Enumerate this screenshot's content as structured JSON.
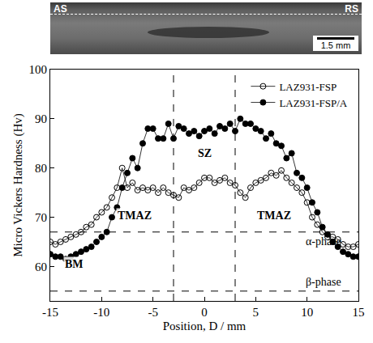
{
  "chart_data": {
    "type": "scatter",
    "x_label": "Position, D / mm",
    "y_label": "Micro Vickers Hardness (Hv)",
    "xlim": [
      -15,
      15
    ],
    "xticks": [
      -15,
      -10,
      -5,
      0,
      5,
      10,
      15
    ],
    "ylim": [
      53,
      100
    ],
    "yticks": [
      60,
      70,
      80,
      90,
      100
    ],
    "grid": false,
    "legend": "top right",
    "x": [
      -15,
      -14.5,
      -14,
      -13.5,
      -13,
      -12.5,
      -12,
      -11.5,
      -11,
      -10.5,
      -10,
      -9.5,
      -9,
      -8.5,
      -8,
      -7.5,
      -7,
      -6.5,
      -6,
      -5.5,
      -5,
      -4.5,
      -4,
      -3.5,
      -3,
      -2.5,
      -2,
      -1.5,
      -1,
      -0.5,
      0,
      0.5,
      1,
      1.5,
      2,
      2.5,
      3,
      3.5,
      4,
      4.5,
      5,
      5.5,
      6,
      6.5,
      7,
      7.5,
      8,
      8.5,
      9,
      9.5,
      10,
      10.5,
      11,
      11.5,
      12,
      12.5,
      13,
      13.5,
      14,
      14.5,
      15
    ],
    "series": [
      {
        "name": "LAZ931-FSP",
        "color": "#000000",
        "marker": "open circle",
        "line_style": "solid",
        "values": [
          65,
          64.5,
          65,
          65.5,
          66,
          66.5,
          67,
          68,
          68.5,
          70,
          71,
          72,
          74,
          76,
          80,
          76,
          77,
          75.5,
          76,
          75.5,
          76,
          75,
          76,
          75,
          74.5,
          74,
          76,
          75.5,
          76,
          77,
          78,
          78,
          77,
          77.5,
          78,
          77,
          76.5,
          75,
          74,
          76,
          77,
          77.5,
          78,
          79,
          78.5,
          79.5,
          78,
          77,
          76,
          75,
          73,
          70,
          68.5,
          67,
          66,
          66,
          65.5,
          64.5,
          64,
          64,
          64.5
        ]
      },
      {
        "name": "LAZ931-FSP/A",
        "color": "#000000",
        "marker": "filled circle",
        "line_style": "solid",
        "values": [
          62.5,
          62,
          62,
          61.5,
          62,
          62.5,
          63,
          63.5,
          64,
          65,
          66,
          67,
          70,
          72,
          76,
          79,
          82,
          80,
          85,
          88,
          88,
          86,
          86,
          89,
          86,
          88.5,
          88,
          87,
          87.5,
          86.5,
          87.5,
          88,
          87,
          88.5,
          88,
          89,
          87.5,
          90,
          89,
          89,
          88,
          87.5,
          86,
          87,
          85,
          84.5,
          82,
          83,
          79,
          78,
          76,
          73,
          71,
          68,
          66.5,
          65,
          64,
          63,
          62.5,
          62,
          62
        ]
      }
    ],
    "reference_lines": [
      {
        "y": 67,
        "label": "α-phase"
      },
      {
        "y": 55,
        "label": "β-phase"
      }
    ],
    "zone_lines": [
      -3,
      3
    ],
    "annotations": [
      "SZ",
      "TMAZ",
      "TMAZ",
      "BM"
    ]
  },
  "micrograph": {
    "left_label": "AS",
    "right_label": "RS",
    "scale_bar": "1.5 mm"
  }
}
